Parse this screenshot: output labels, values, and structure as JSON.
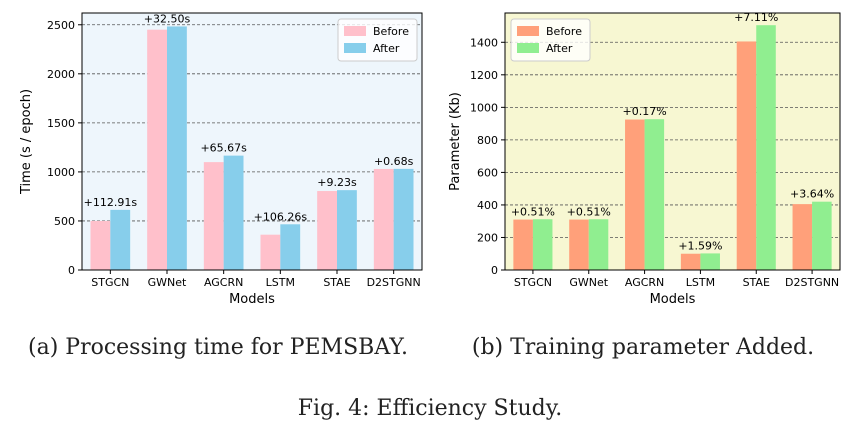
{
  "figure_caption": "Fig. 4: Efficiency Study.",
  "colors": {
    "left_bg": "#eef6fc",
    "right_bg": "#f7f7d2",
    "left_before": "#ffc0cb",
    "left_after": "#87ceeb",
    "right_before": "#ffa07a",
    "right_after": "#90ee90"
  },
  "panels": [
    {
      "caption": "(a) Processing time for PEMSBAY.",
      "chart_data": {
        "type": "bar",
        "categories": [
          "STGCN",
          "GWNet",
          "AGCRN",
          "LSTM",
          "STAE",
          "D2STGNN"
        ],
        "series": [
          {
            "name": "Before",
            "values": [
              500,
              2450,
              1100,
              360,
              805,
              1030
            ]
          },
          {
            "name": "After",
            "values": [
              613,
              2483,
              1166,
              466,
              814,
              1031
            ]
          }
        ],
        "annotations": [
          "+112.91s",
          "+32.50s",
          "+65.67s",
          "+106.26s",
          "+9.23s",
          "+0.68s"
        ],
        "xlabel": "Models",
        "ylabel": "Time (s / epoch)",
        "ylim": [
          0,
          2620
        ],
        "yticks": [
          0,
          500,
          1000,
          1500,
          2000,
          2500
        ],
        "grid": "y, dashed",
        "legend": "top-right"
      }
    },
    {
      "caption": "(b) Training parameter Added.",
      "chart_data": {
        "type": "bar",
        "categories": [
          "STGCN",
          "GWNet",
          "AGCRN",
          "LSTM",
          "STAE",
          "D2STGNN"
        ],
        "series": [
          {
            "name": "Before",
            "values": [
              310,
              310,
              925,
              100,
              1405,
              405
            ]
          },
          {
            "name": "After",
            "values": [
              312,
              312,
              927,
              102,
              1505,
              420
            ]
          }
        ],
        "annotations": [
          "+0.51%",
          "+0.51%",
          "+0.17%",
          "+1.59%",
          "+7.11%",
          "+3.64%"
        ],
        "xlabel": "Models",
        "ylabel": "Parameter (Kb)",
        "ylim": [
          0,
          1580
        ],
        "yticks": [
          0,
          200,
          400,
          600,
          800,
          1000,
          1200,
          1400
        ],
        "grid": "y, dashed",
        "legend": "top-left"
      }
    }
  ]
}
